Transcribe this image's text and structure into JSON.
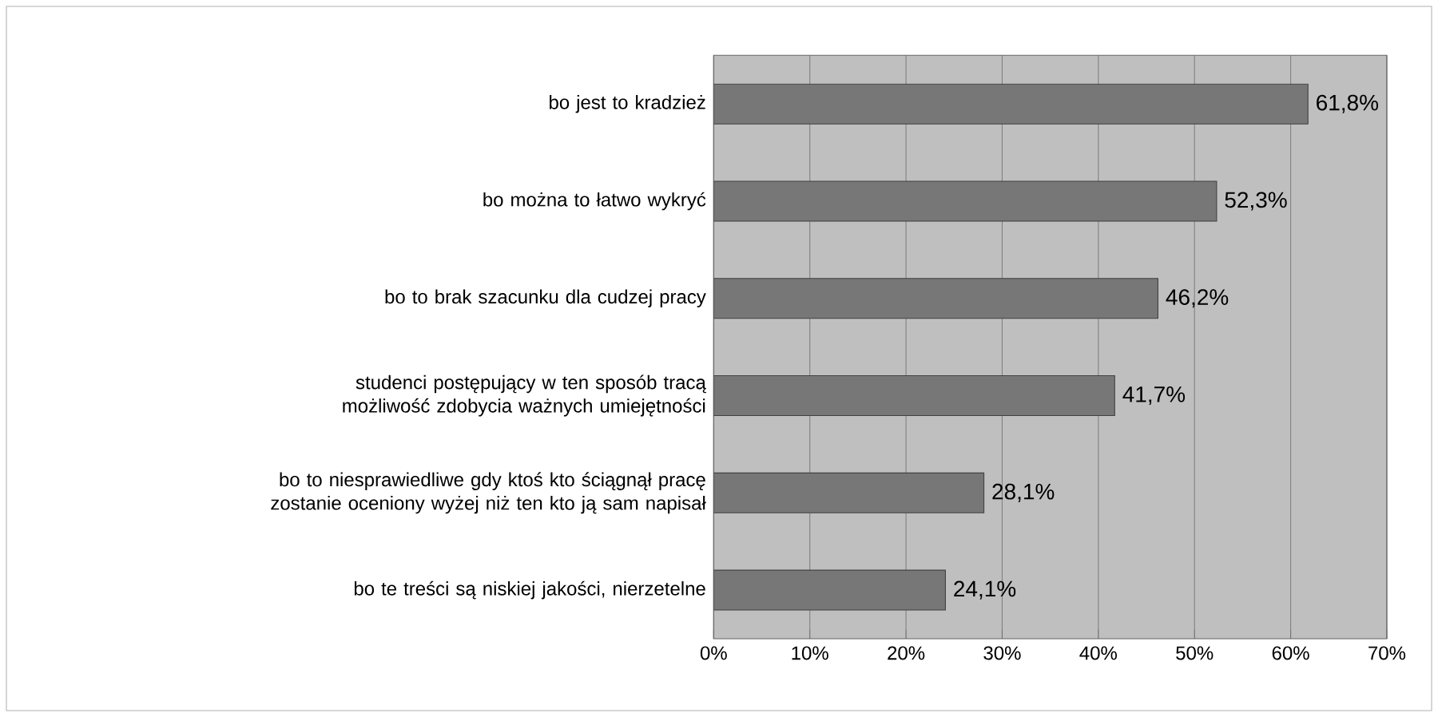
{
  "chart_data": {
    "type": "bar",
    "orientation": "horizontal",
    "categories": [
      "bo jest to kradzież",
      "bo można to łatwo wykryć",
      "bo to brak szacunku dla cudzej pracy",
      "studenci postępujący w ten sposób tracą możliwość zdobycia ważnych umiejętności",
      "bo to niesprawiedliwe gdy ktoś kto ściągnął pracę zostanie oceniony wyżej niż ten kto ją sam napisał",
      "bo te treści są niskiej jakości, nierzetelne"
    ],
    "values": [
      61.8,
      52.3,
      46.2,
      41.7,
      28.1,
      24.1
    ],
    "value_labels": [
      "61,8%",
      "52,3%",
      "46,2%",
      "41,7%",
      "28,1%",
      "24,1%"
    ],
    "color": "#777777",
    "xlim": [
      0,
      70
    ],
    "xticks": [
      {
        "value": 0,
        "label": "0%"
      },
      {
        "value": 10,
        "label": "10%"
      },
      {
        "value": 20,
        "label": "20%"
      },
      {
        "value": 30,
        "label": "30%"
      },
      {
        "value": 40,
        "label": "40%"
      },
      {
        "value": 50,
        "label": "50%"
      },
      {
        "value": 60,
        "label": "60%"
      },
      {
        "value": 70,
        "label": "70%"
      }
    ],
    "grid": "x"
  }
}
